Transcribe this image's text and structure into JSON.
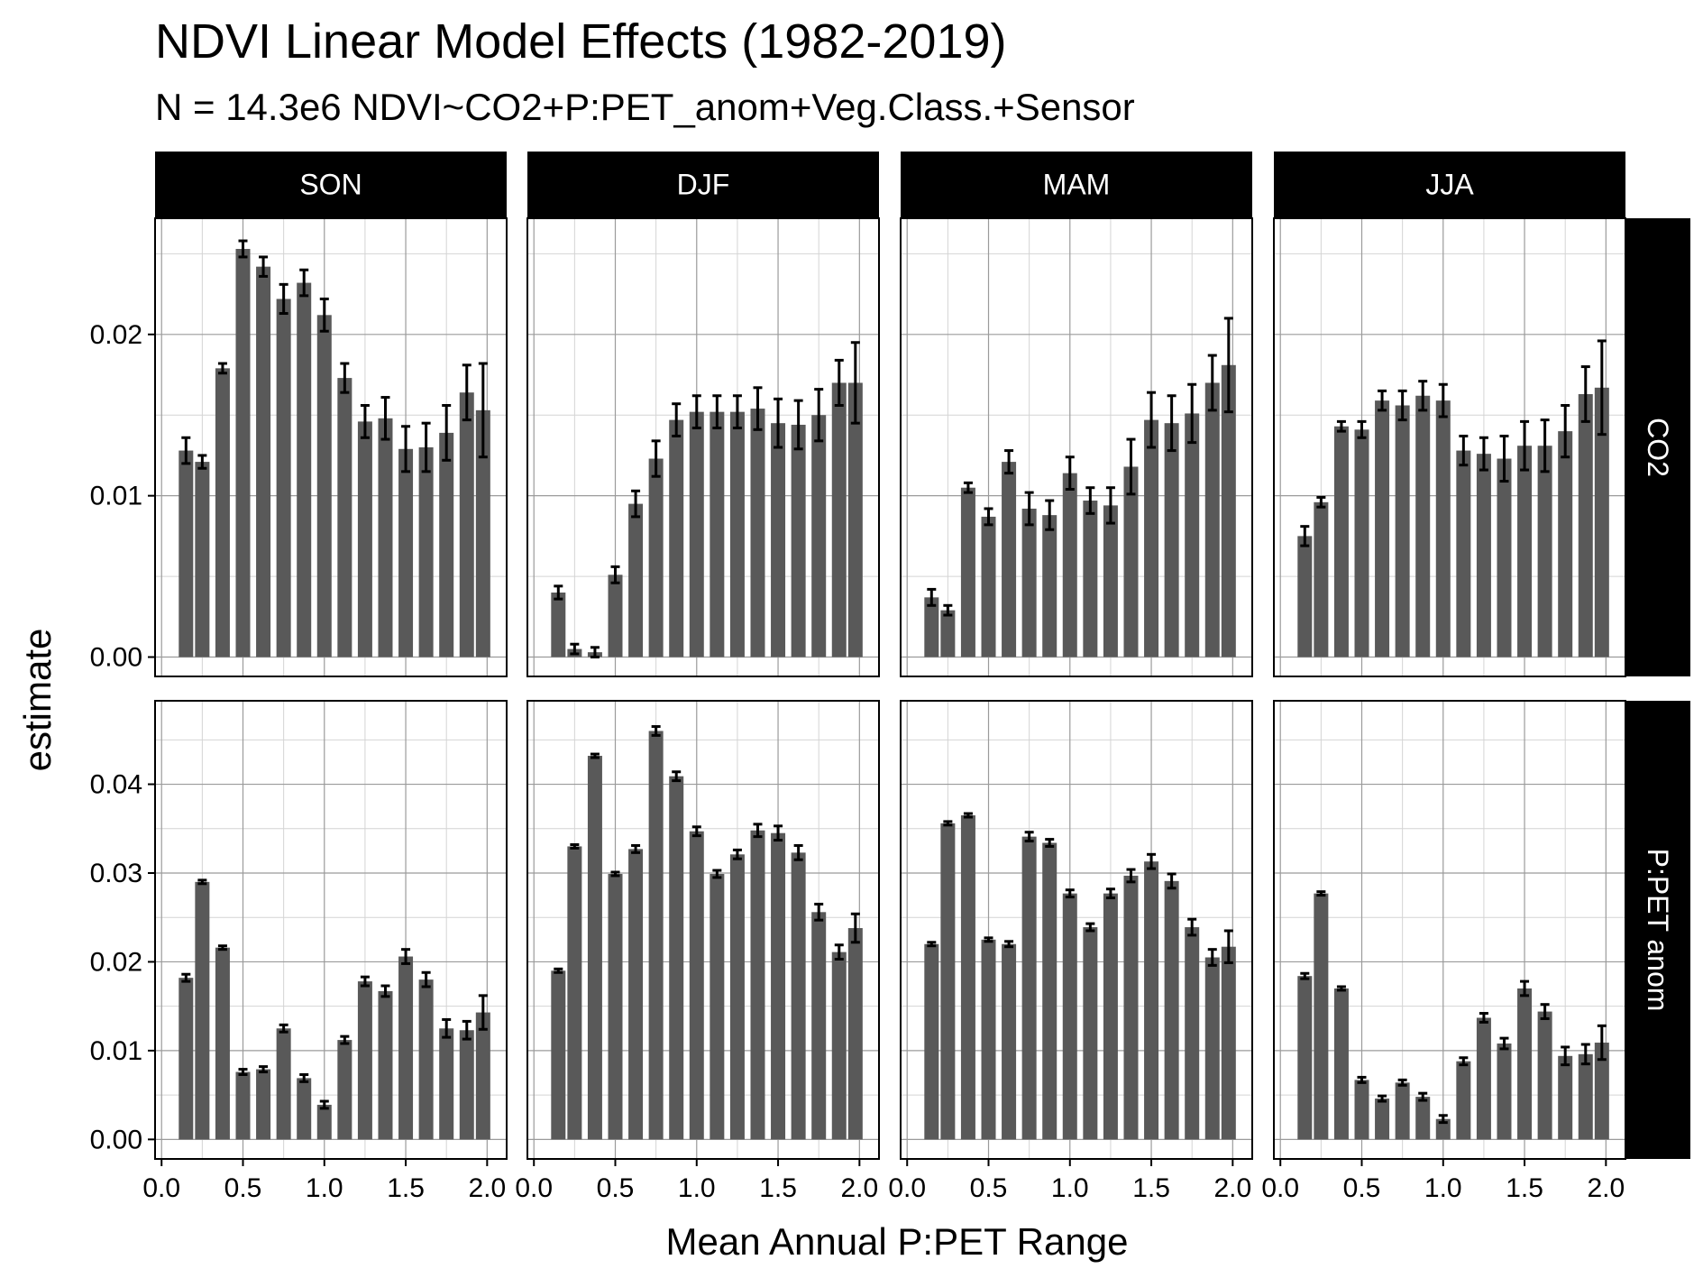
{
  "title": "NDVI Linear Model Effects (1982-2019)",
  "subtitle": "N = 14.3e6   NDVI~CO2+P:PET_anom+Veg.Class.+Sensor",
  "colors": {
    "bar": "#595959",
    "strip": "#000000",
    "error": "#000000"
  },
  "chart_data": {
    "type": "bar",
    "facet_columns": [
      "SON",
      "DJF",
      "MAM",
      "JJA"
    ],
    "facet_rows": [
      "CO2",
      "P:PET anom"
    ],
    "xlabel": "Mean Annual P:PET Range",
    "ylabel": "estimate",
    "x": [
      0.15,
      0.25,
      0.375,
      0.5,
      0.625,
      0.75,
      0.875,
      1.0,
      1.125,
      1.25,
      1.375,
      1.5,
      1.625,
      1.75,
      1.875,
      1.975
    ],
    "xlim": [
      -0.04,
      2.12
    ],
    "x_ticks": [
      0.0,
      0.5,
      1.0,
      1.5,
      2.0
    ],
    "x_tick_labels": [
      "0.0",
      "0.5",
      "1.0",
      "1.5",
      "2.0"
    ],
    "rows": [
      {
        "name": "CO2",
        "ylim": [
          -0.0012,
          0.0272
        ],
        "y_ticks": [
          0.0,
          0.01,
          0.02
        ],
        "y_tick_labels": [
          "0.00",
          "0.01",
          "0.02"
        ],
        "panels": [
          {
            "facet": "SON",
            "values": [
              0.0128,
              0.0121,
              0.0179,
              0.0253,
              0.0242,
              0.0222,
              0.0232,
              0.0212,
              0.0173,
              0.0146,
              0.0148,
              0.0129,
              0.013,
              0.0139,
              0.0164,
              0.0153
            ],
            "errors": [
              0.0008,
              0.0004,
              0.0003,
              0.0005,
              0.0006,
              0.0009,
              0.0008,
              0.001,
              0.0009,
              0.001,
              0.0013,
              0.0014,
              0.0015,
              0.0017,
              0.0017,
              0.0029
            ]
          },
          {
            "facet": "DJF",
            "values": [
              0.004,
              0.0005,
              0.0003,
              0.0051,
              0.0095,
              0.0123,
              0.0147,
              0.0152,
              0.0152,
              0.0152,
              0.0154,
              0.0145,
              0.0144,
              0.015,
              0.017,
              0.017
            ],
            "errors": [
              0.0004,
              0.0003,
              0.0003,
              0.0005,
              0.0008,
              0.0011,
              0.001,
              0.001,
              0.001,
              0.001,
              0.0013,
              0.0015,
              0.0015,
              0.0016,
              0.0014,
              0.0025
            ]
          },
          {
            "facet": "MAM",
            "values": [
              0.0037,
              0.0029,
              0.0105,
              0.0087,
              0.0121,
              0.0092,
              0.0088,
              0.0114,
              0.0097,
              0.0094,
              0.0118,
              0.0147,
              0.0145,
              0.0151,
              0.017,
              0.0181
            ],
            "errors": [
              0.0005,
              0.0003,
              0.0003,
              0.0005,
              0.0007,
              0.001,
              0.0009,
              0.001,
              0.0008,
              0.0011,
              0.0017,
              0.0017,
              0.0017,
              0.0018,
              0.0017,
              0.0029
            ]
          },
          {
            "facet": "JJA",
            "values": [
              0.0075,
              0.0096,
              0.0143,
              0.0141,
              0.0159,
              0.0156,
              0.0162,
              0.0159,
              0.0128,
              0.0126,
              0.0123,
              0.0131,
              0.0131,
              0.014,
              0.0163,
              0.0167
            ],
            "errors": [
              0.0006,
              0.0003,
              0.0003,
              0.0005,
              0.0006,
              0.0009,
              0.0009,
              0.001,
              0.0009,
              0.001,
              0.0014,
              0.0015,
              0.0016,
              0.0016,
              0.0017,
              0.0029
            ]
          }
        ]
      },
      {
        "name": "P:PET anom",
        "ylim": [
          -0.0022,
          0.0494
        ],
        "y_ticks": [
          0.0,
          0.01,
          0.02,
          0.03,
          0.04
        ],
        "y_tick_labels": [
          "0.00",
          "0.01",
          "0.02",
          "0.03",
          "0.04"
        ],
        "panels": [
          {
            "facet": "SON",
            "values": [
              0.0182,
              0.029,
              0.0216,
              0.0076,
              0.0079,
              0.0125,
              0.0069,
              0.0039,
              0.0112,
              0.0178,
              0.0167,
              0.0206,
              0.018,
              0.0125,
              0.0123,
              0.0143
            ],
            "errors": [
              0.0004,
              0.0002,
              0.0002,
              0.0003,
              0.0003,
              0.0004,
              0.0004,
              0.0004,
              0.0004,
              0.0005,
              0.0006,
              0.0008,
              0.0008,
              0.001,
              0.001,
              0.0019
            ]
          },
          {
            "facet": "DJF",
            "values": [
              0.019,
              0.033,
              0.0432,
              0.0299,
              0.0327,
              0.046,
              0.0409,
              0.0347,
              0.0299,
              0.0321,
              0.0348,
              0.0345,
              0.0323,
              0.0256,
              0.0211,
              0.0238
            ],
            "errors": [
              0.0002,
              0.0002,
              0.0002,
              0.0002,
              0.0004,
              0.0005,
              0.0005,
              0.0005,
              0.0004,
              0.0005,
              0.0007,
              0.0008,
              0.0008,
              0.0009,
              0.0008,
              0.0016
            ]
          },
          {
            "facet": "MAM",
            "values": [
              0.022,
              0.0356,
              0.0365,
              0.0225,
              0.022,
              0.0341,
              0.0334,
              0.0277,
              0.0239,
              0.0277,
              0.0297,
              0.0313,
              0.0291,
              0.0239,
              0.0205,
              0.0217
            ],
            "errors": [
              0.0002,
              0.0002,
              0.0002,
              0.0002,
              0.0003,
              0.0005,
              0.0004,
              0.0004,
              0.0004,
              0.0005,
              0.0007,
              0.0008,
              0.0008,
              0.0009,
              0.0009,
              0.0018
            ]
          },
          {
            "facet": "JJA",
            "values": [
              0.0184,
              0.0277,
              0.017,
              0.0067,
              0.0046,
              0.0064,
              0.0048,
              0.0023,
              0.0088,
              0.0137,
              0.0108,
              0.017,
              0.0144,
              0.0094,
              0.0096,
              0.0109
            ],
            "errors": [
              0.0003,
              0.0002,
              0.0002,
              0.0003,
              0.0003,
              0.0003,
              0.0004,
              0.0004,
              0.0004,
              0.0005,
              0.0006,
              0.0008,
              0.0008,
              0.001,
              0.0011,
              0.0019
            ]
          }
        ]
      }
    ]
  }
}
